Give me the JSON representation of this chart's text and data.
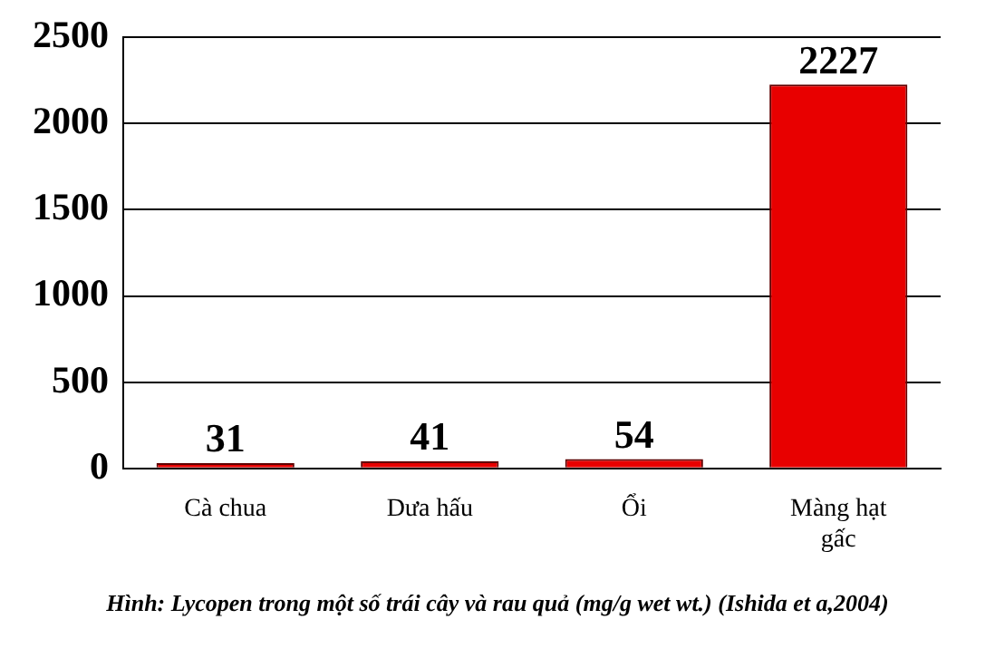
{
  "chart_data": {
    "type": "bar",
    "categories": [
      "Cà chua",
      "Dưa hấu",
      "Ổi",
      "Màng hạt gấc"
    ],
    "values": [
      31,
      41,
      54,
      2227
    ],
    "color": "#e80000",
    "ylim": [
      0,
      2500
    ],
    "yticks": [
      0,
      500,
      1000,
      1500,
      2000,
      2500
    ],
    "grid": "y",
    "data_labels": true,
    "annotations": [
      "Hình: Lycopen trong một số trái cây và rau quả (mg/g wet wt.) (Ishida et a,2004)"
    ]
  }
}
